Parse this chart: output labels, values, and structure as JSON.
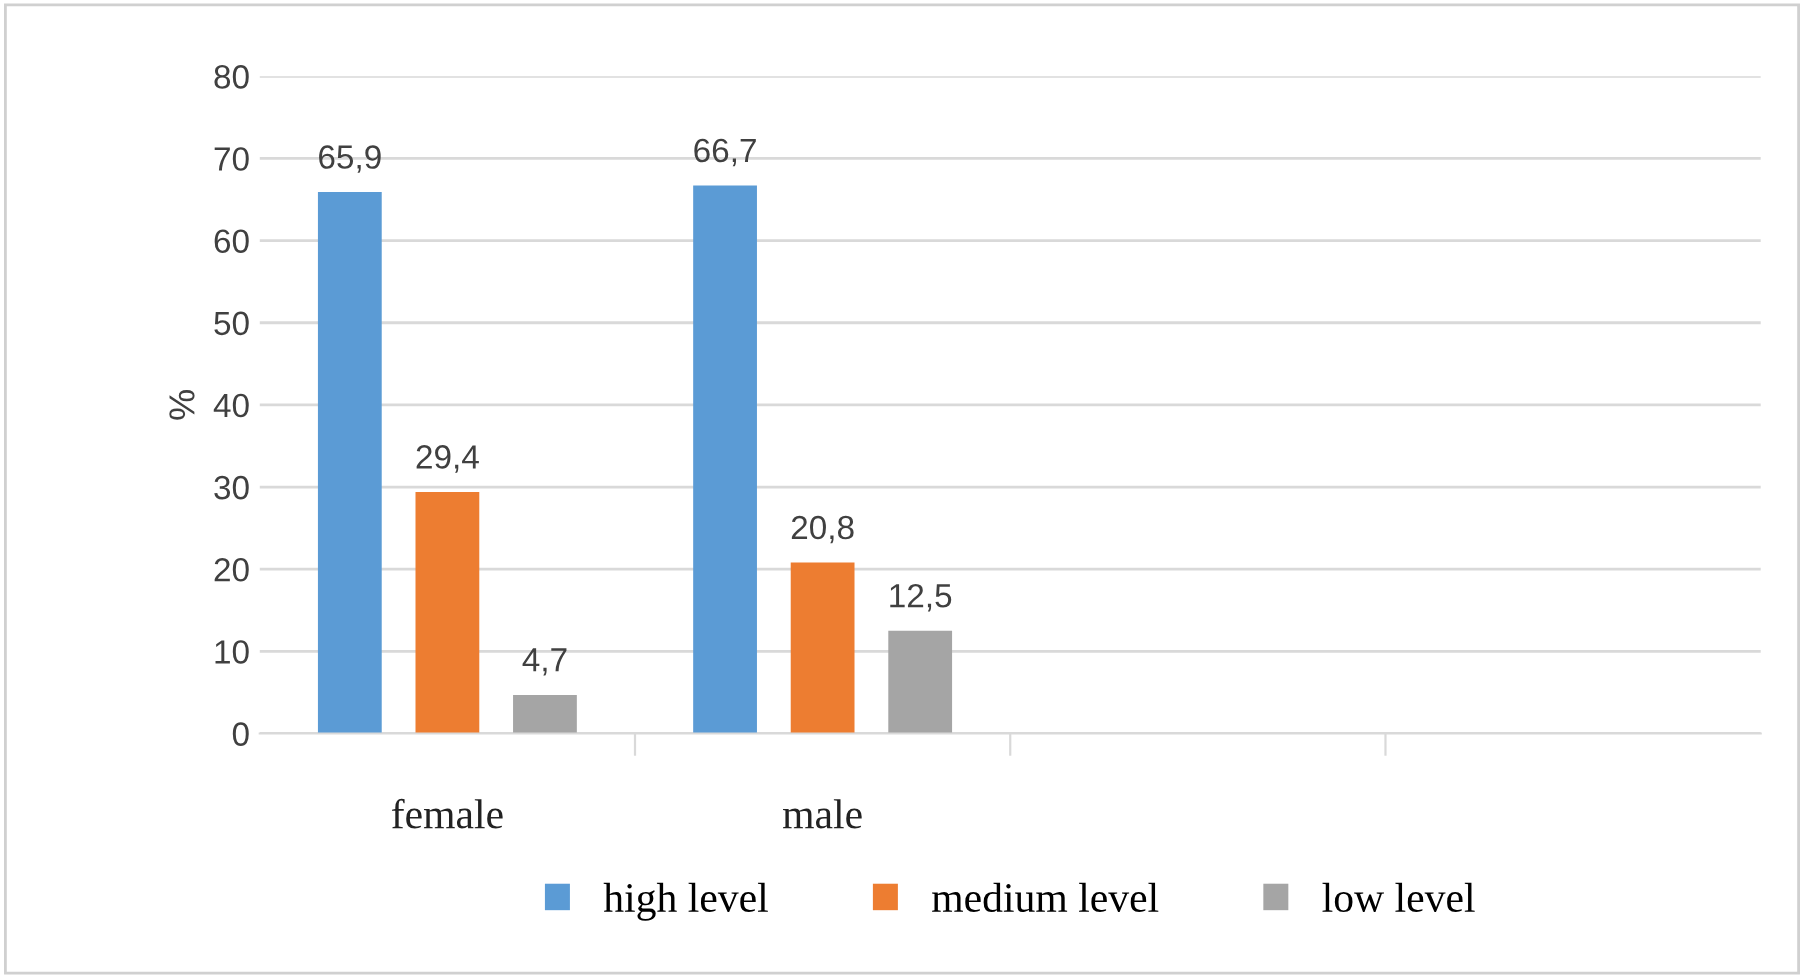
{
  "chart_data": {
    "type": "bar",
    "ylabel": "%",
    "categories": [
      "female",
      "male",
      null,
      null
    ],
    "series": [
      {
        "name": "high level",
        "color": "#5b9bd5",
        "values": [
          65.9,
          66.7,
          null,
          null
        ],
        "value_labels": [
          "65,9",
          "66,7",
          null,
          null
        ]
      },
      {
        "name": "medium level",
        "color": "#ed7d31",
        "values": [
          29.4,
          20.8,
          null,
          null
        ],
        "value_labels": [
          "29,4",
          "20,8",
          null,
          null
        ]
      },
      {
        "name": "low level",
        "color": "#a5a5a5",
        "values": [
          4.7,
          12.5,
          null,
          null
        ],
        "value_labels": [
          "4,7",
          "12,5",
          null,
          null
        ]
      }
    ],
    "ylim": [
      0,
      80
    ],
    "yticks": [
      0,
      10,
      20,
      30,
      40,
      50,
      60,
      70,
      80
    ],
    "grid": "y",
    "legend": "bottom"
  }
}
